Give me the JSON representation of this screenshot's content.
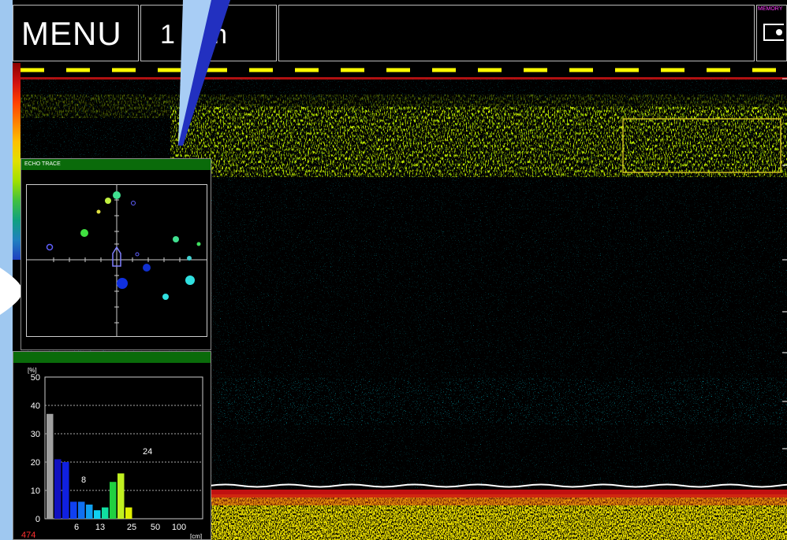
{
  "top_bar": {
    "menu_label": "MENU",
    "depth_label": "1  .6m",
    "memory_label": "MEMORY"
  },
  "echo_trace": {
    "title": "ECHO TRACE"
  },
  "histogram": {
    "y_unit": "[%]",
    "y_ticks": [
      "50",
      "40",
      "30",
      "20",
      "10",
      "0"
    ],
    "x_ticks": [
      "6",
      "13",
      "25",
      "50",
      "100"
    ],
    "x_unit": "[cm]",
    "count": "474",
    "annotation_a": "8",
    "annotation_b": "24"
  },
  "chart_data": {
    "type": "bar",
    "y_unit": "[%]",
    "x_unit": "[cm]",
    "ylim": [
      0,
      50
    ],
    "x_ticks": [
      "6",
      "13",
      "25",
      "50",
      "100"
    ],
    "bars": [
      {
        "value": 37,
        "color": "#a0a0a0"
      },
      {
        "value": 21,
        "color": "#1010c0"
      },
      {
        "value": 20,
        "color": "#1020e0"
      },
      {
        "value": 6,
        "color": "#1040f0"
      },
      {
        "value": 6,
        "color": "#1070f0"
      },
      {
        "value": 5,
        "color": "#10a0f0"
      },
      {
        "value": 3,
        "color": "#10d0f0"
      },
      {
        "value": 4,
        "color": "#10e0a0"
      },
      {
        "value": 13,
        "color": "#20d040"
      },
      {
        "value": 16,
        "color": "#c0f020"
      },
      {
        "value": 4,
        "color": "#e0f000"
      }
    ],
    "count": "474"
  },
  "colors": {
    "accent_yellow": "#ffff00",
    "panel_header": "#0a6b0a",
    "count_color": "#ff3030"
  }
}
